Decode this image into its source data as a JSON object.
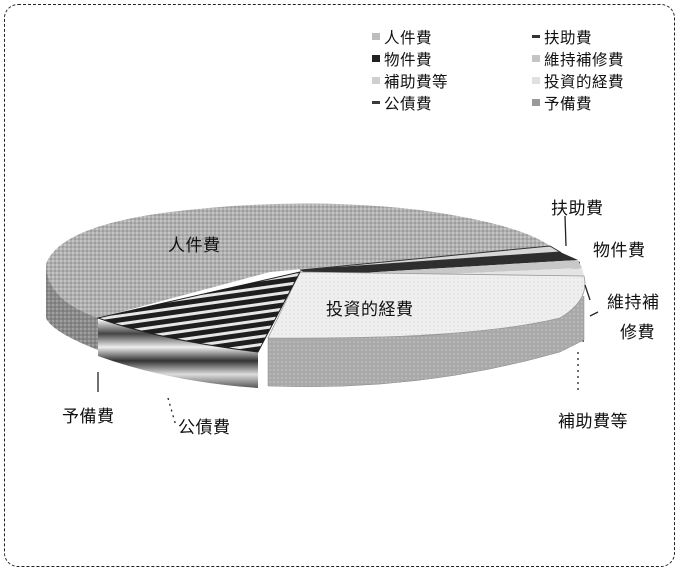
{
  "chart_data": {
    "type": "pie",
    "style": "3d-exploded",
    "categories": [
      "人件費",
      "扶助費",
      "物件費",
      "維持補修費",
      "補助費等",
      "投資的経費",
      "公債費",
      "予備費"
    ],
    "values": [
      41.6,
      0.5,
      2.0,
      0.8,
      1.0,
      28.0,
      12.0,
      14.1
    ],
    "unit": "%",
    "legend_position": "top-right",
    "colors": {
      "人件費": "#a8a8a8",
      "扶助費": "#d8d8d8",
      "物件費": "#2e2e2e",
      "維持補修費": "#c8c8c8",
      "補助費等": "#e4e4e4",
      "投資的経費": "#efefef",
      "公債費": "#777777",
      "予備費": "#6e6e6e"
    }
  },
  "legend": [
    {
      "label": "人件費",
      "swatch": "#bdbdbd"
    },
    {
      "label": "扶助費",
      "swatch": "#333333"
    },
    {
      "label": "物件費",
      "swatch": "#222222"
    },
    {
      "label": "維持補修費",
      "swatch": "#c4c4c4"
    },
    {
      "label": "補助費等",
      "swatch": "#cfcfcf"
    },
    {
      "label": "投資的経費",
      "swatch": "#e0e0e0"
    },
    {
      "label": "公債費",
      "swatch": "#3a3a3a"
    },
    {
      "label": "予備費",
      "swatch": "#9a9a9a"
    }
  ],
  "labels": {
    "jinkenhi": "人件費",
    "fujohi": "扶助費",
    "bukkenhi": "物件費",
    "iji_line1": "維持補",
    "iji_line2": "修費",
    "hojohi": "補助費等",
    "toshi": "投資的経費",
    "yobihi": "予備費",
    "kosaihi": "公債費"
  }
}
